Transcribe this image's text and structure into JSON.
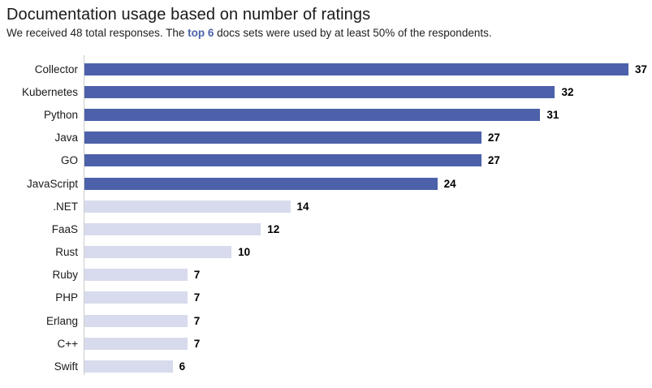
{
  "header": {
    "title": "Documentation usage based on number of ratings",
    "subtitle_prefix": "We received 48 total responses. The ",
    "subtitle_highlight": "top 6",
    "subtitle_suffix": " docs sets were used by at least 50% of the respondents."
  },
  "chart_data": {
    "type": "bar",
    "orientation": "horizontal",
    "title": "Documentation usage based on number of ratings",
    "subtitle": "We received 48 total responses. The top 6 docs sets were used by at least 50% of the respondents.",
    "categories": [
      "Collector",
      "Kubernetes",
      "Python",
      "Java",
      "GO",
      "JavaScript",
      ".NET",
      "FaaS",
      "Rust",
      "Ruby",
      "PHP",
      "Erlang",
      "C++",
      "Swift"
    ],
    "values": [
      37,
      32,
      31,
      27,
      27,
      24,
      14,
      12,
      10,
      7,
      7,
      7,
      7,
      6
    ],
    "highlight_count": 6,
    "xlim": [
      0,
      37
    ],
    "grid": false,
    "value_labels": "end-of-bar",
    "colors": {
      "highlight_bar": "#4C61A9",
      "default_bar": "#D8DBED",
      "highlight_text": "#4C61A9",
      "axis_line": "#CCCCCC",
      "value_label": "#000000"
    }
  }
}
